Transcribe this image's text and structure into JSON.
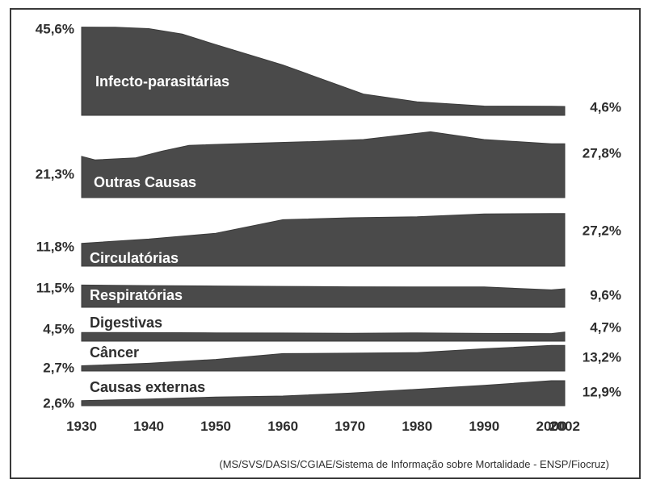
{
  "chart_data": {
    "type": "area",
    "x": [
      1930,
      1940,
      1950,
      1960,
      1970,
      1980,
      1990,
      2000,
      2002
    ],
    "xticks": [
      "1930",
      "1940",
      "1950",
      "1960",
      "1970",
      "1980",
      "1990",
      "2000",
      "2002"
    ],
    "series": [
      {
        "name": "Infecto-parasitárias",
        "start_label": "45,6%",
        "end_label": "4,6%",
        "label_color": "light",
        "x": [
          1930,
          1935,
          1940,
          1945,
          1950,
          1960,
          1972,
          1980,
          1990,
          2000,
          2002
        ],
        "values": [
          45.6,
          45.5,
          44.8,
          42.0,
          36.5,
          26.0,
          11.0,
          7.0,
          4.8,
          4.7,
          4.6
        ]
      },
      {
        "name": "Outras Causas",
        "start_label": "21,3%",
        "end_label": "27,8%",
        "label_color": "light",
        "x": [
          1930,
          1932,
          1938,
          1942,
          1946,
          1955,
          1965,
          1972,
          1982,
          1990,
          2000,
          2002
        ],
        "values": [
          21.3,
          19.5,
          20.5,
          24.0,
          27.0,
          28.0,
          29.0,
          30.0,
          34.0,
          30.0,
          27.8,
          27.8
        ]
      },
      {
        "name": "Circulatórias",
        "start_label": "11,8%",
        "end_label": "27,2%",
        "label_color": "light",
        "x": [
          1930,
          1940,
          1950,
          1960,
          1970,
          1980,
          1990,
          2000,
          2002
        ],
        "values": [
          11.8,
          14.0,
          17.0,
          24.0,
          25.0,
          25.5,
          27.0,
          27.2,
          27.2
        ]
      },
      {
        "name": "Respiratórias",
        "start_label": "11,5%",
        "end_label": "9,6%",
        "label_color": "light",
        "x": [
          1930,
          1940,
          1950,
          1960,
          1970,
          1980,
          1990,
          2000,
          2002
        ],
        "values": [
          11.5,
          11.2,
          11.0,
          10.8,
          10.6,
          10.5,
          10.5,
          9.0,
          9.6
        ]
      },
      {
        "name": "Digestivas",
        "start_label": "4,5%",
        "end_label": "4,7%",
        "label_color": "dark",
        "x": [
          1930,
          1940,
          1950,
          1960,
          1970,
          1980,
          1990,
          2000,
          2002
        ],
        "values": [
          4.5,
          4.4,
          4.3,
          4.2,
          4.1,
          4.3,
          4.0,
          3.9,
          4.7
        ]
      },
      {
        "name": "Câncer",
        "start_label": "2,7%",
        "end_label": "13,2%",
        "label_color": "dark",
        "x": [
          1930,
          1940,
          1950,
          1960,
          1970,
          1980,
          1990,
          2000,
          2002
        ],
        "values": [
          2.7,
          4.0,
          6.0,
          9.0,
          9.2,
          9.5,
          11.5,
          13.2,
          13.2
        ]
      },
      {
        "name": "Causas externas",
        "start_label": "2,6%",
        "end_label": "12,9%",
        "label_color": "dark",
        "x": [
          1930,
          1940,
          1950,
          1960,
          1970,
          1980,
          1990,
          2000,
          2002
        ],
        "values": [
          2.6,
          3.4,
          4.5,
          5.0,
          6.5,
          8.5,
          10.5,
          12.9,
          12.9
        ]
      }
    ],
    "source": "(MS/SVS/DASIS/CGIAE/Sistema de Informação sobre Mortalidade - ENSP/Fiocruz)",
    "colors": {
      "fill": "#4a4a4a",
      "text": "#2e2e2e",
      "frame": "#3a3a3a"
    }
  }
}
